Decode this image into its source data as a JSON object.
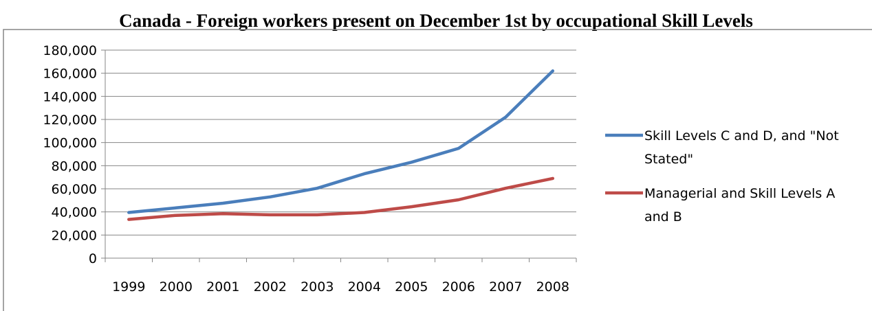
{
  "chart_data": {
    "type": "line",
    "title": "Canada - Foreign workers present on December 1st by occupational Skill Levels",
    "xlabel": "",
    "ylabel": "",
    "categories": [
      "1999",
      "2000",
      "2001",
      "2002",
      "2003",
      "2004",
      "2005",
      "2006",
      "2007",
      "2008"
    ],
    "ylim": [
      0,
      180000
    ],
    "y_ticks": [
      0,
      20000,
      40000,
      60000,
      80000,
      100000,
      120000,
      140000,
      160000,
      180000
    ],
    "y_tick_labels": [
      "0",
      "20,000",
      "40,000",
      "60,000",
      "80,000",
      "100,000",
      "120,000",
      "140,000",
      "160,000",
      "180,000"
    ],
    "grid": true,
    "legend_position": "right",
    "series": [
      {
        "name": "Skill Levels C and D, and \"Not Stated\"",
        "legend_lines": [
          "Skill Levels C and D, and \"Not",
          "Stated\""
        ],
        "color": "#4a7ebb",
        "values": [
          39500,
          43500,
          47500,
          53000,
          60500,
          73000,
          83000,
          95000,
          122000,
          162000
        ]
      },
      {
        "name": "Managerial and Skill Levels A and B",
        "legend_lines": [
          "Managerial and Skill Levels A",
          "and B"
        ],
        "color": "#be4b48",
        "values": [
          33500,
          37000,
          38500,
          37500,
          37500,
          39500,
          44500,
          50500,
          60500,
          69000
        ]
      }
    ]
  }
}
